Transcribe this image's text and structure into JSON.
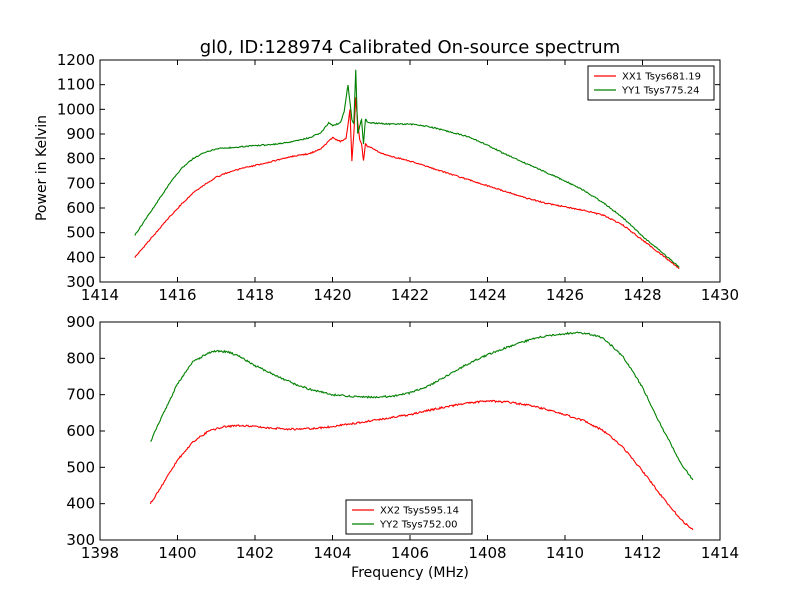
{
  "figure": {
    "title": "gl0, ID:128974 Calibrated On-source spectrum",
    "xlabel": "Frequency (MHz)"
  },
  "chart_data": [
    {
      "type": "line",
      "title": "gl0, ID:128974 Calibrated On-source spectrum",
      "xlabel": "",
      "ylabel": "Power in Kelvin",
      "xlim": [
        1414,
        1430
      ],
      "ylim": [
        300,
        1200
      ],
      "xticks": [
        1414,
        1416,
        1418,
        1420,
        1422,
        1424,
        1426,
        1428,
        1430
      ],
      "yticks": [
        300,
        400,
        500,
        600,
        700,
        800,
        900,
        1000,
        1100,
        1200
      ],
      "grid": false,
      "legend_position": "top-right",
      "series": [
        {
          "name": "XX1 Tsys681.19",
          "color": "#ff0000",
          "x": [
            1414.9,
            1415.2,
            1415.5,
            1415.8,
            1416.1,
            1416.4,
            1416.7,
            1417.0,
            1417.4,
            1417.8,
            1418.2,
            1418.6,
            1419.0,
            1419.4,
            1419.7,
            1419.9,
            1420.0,
            1420.2,
            1420.35,
            1420.45,
            1420.5,
            1420.55,
            1420.6,
            1420.65,
            1420.7,
            1420.75,
            1420.8,
            1420.85,
            1420.9,
            1421.0,
            1421.2,
            1421.5,
            1422.0,
            1422.5,
            1423.0,
            1423.5,
            1424.0,
            1424.5,
            1425.0,
            1425.5,
            1426.0,
            1426.5,
            1427.0,
            1427.5,
            1428.0,
            1428.5,
            1428.95
          ],
          "y": [
            400,
            455,
            510,
            565,
            615,
            660,
            695,
            725,
            750,
            765,
            780,
            795,
            810,
            820,
            840,
            870,
            885,
            870,
            880,
            1000,
            790,
            900,
            1050,
            950,
            880,
            860,
            790,
            860,
            850,
            845,
            825,
            810,
            790,
            765,
            740,
            715,
            690,
            665,
            640,
            620,
            605,
            590,
            570,
            530,
            470,
            410,
            355
          ]
        },
        {
          "name": "YY1 Tsys775.24",
          "color": "#008000",
          "x": [
            1414.9,
            1415.2,
            1415.5,
            1415.8,
            1416.1,
            1416.4,
            1416.7,
            1417.0,
            1417.4,
            1417.8,
            1418.2,
            1418.6,
            1419.0,
            1419.4,
            1419.7,
            1419.9,
            1420.0,
            1420.2,
            1420.3,
            1420.4,
            1420.5,
            1420.55,
            1420.6,
            1420.65,
            1420.7,
            1420.75,
            1420.8,
            1420.85,
            1420.9,
            1421.0,
            1421.5,
            1422.0,
            1422.5,
            1423.0,
            1423.5,
            1424.0,
            1424.5,
            1425.0,
            1425.5,
            1426.0,
            1426.5,
            1427.0,
            1427.5,
            1428.0,
            1428.5,
            1428.95
          ],
          "y": [
            490,
            560,
            630,
            700,
            760,
            800,
            825,
            840,
            845,
            850,
            855,
            860,
            870,
            885,
            905,
            945,
            935,
            945,
            990,
            1100,
            960,
            940,
            1160,
            900,
            930,
            960,
            860,
            960,
            950,
            945,
            940,
            940,
            930,
            910,
            890,
            855,
            815,
            780,
            745,
            710,
            670,
            620,
            560,
            485,
            420,
            360
          ]
        }
      ]
    },
    {
      "type": "line",
      "title": "",
      "xlabel": "Frequency (MHz)",
      "ylabel": "",
      "xlim": [
        1398,
        1414
      ],
      "ylim": [
        300,
        900
      ],
      "xticks": [
        1398,
        1400,
        1402,
        1404,
        1406,
        1408,
        1410,
        1412,
        1414
      ],
      "yticks": [
        300,
        400,
        500,
        600,
        700,
        800,
        900
      ],
      "grid": false,
      "legend_position": "bottom-center",
      "series": [
        {
          "name": "XX2 Tsys595.14",
          "color": "#ff0000",
          "x": [
            1399.3,
            1399.6,
            1400.0,
            1400.4,
            1400.8,
            1401.2,
            1401.6,
            1402.0,
            1402.5,
            1403.0,
            1403.5,
            1404.0,
            1404.5,
            1405.0,
            1405.5,
            1406.0,
            1406.5,
            1407.0,
            1407.5,
            1408.0,
            1408.5,
            1409.0,
            1409.5,
            1410.0,
            1410.5,
            1411.0,
            1411.5,
            1412.0,
            1412.5,
            1413.0,
            1413.3
          ],
          "y": [
            400,
            450,
            520,
            570,
            600,
            612,
            615,
            612,
            607,
            605,
            607,
            612,
            620,
            628,
            637,
            645,
            657,
            668,
            677,
            683,
            680,
            672,
            660,
            645,
            628,
            600,
            555,
            490,
            420,
            355,
            328
          ]
        },
        {
          "name": "YY2 Tsys752.00",
          "color": "#008000",
          "x": [
            1399.3,
            1399.6,
            1400.0,
            1400.4,
            1400.8,
            1401.0,
            1401.3,
            1401.6,
            1402.0,
            1402.5,
            1403.0,
            1403.5,
            1404.0,
            1404.5,
            1405.0,
            1405.5,
            1406.0,
            1406.5,
            1407.0,
            1407.5,
            1408.0,
            1408.5,
            1409.0,
            1409.5,
            1410.0,
            1410.3,
            1410.6,
            1411.0,
            1411.5,
            1412.0,
            1412.5,
            1413.0,
            1413.3
          ],
          "y": [
            570,
            640,
            730,
            790,
            815,
            820,
            818,
            805,
            780,
            755,
            730,
            712,
            700,
            695,
            693,
            695,
            705,
            725,
            755,
            785,
            810,
            830,
            848,
            862,
            868,
            870,
            868,
            855,
            805,
            720,
            610,
            510,
            465
          ]
        }
      ]
    }
  ]
}
